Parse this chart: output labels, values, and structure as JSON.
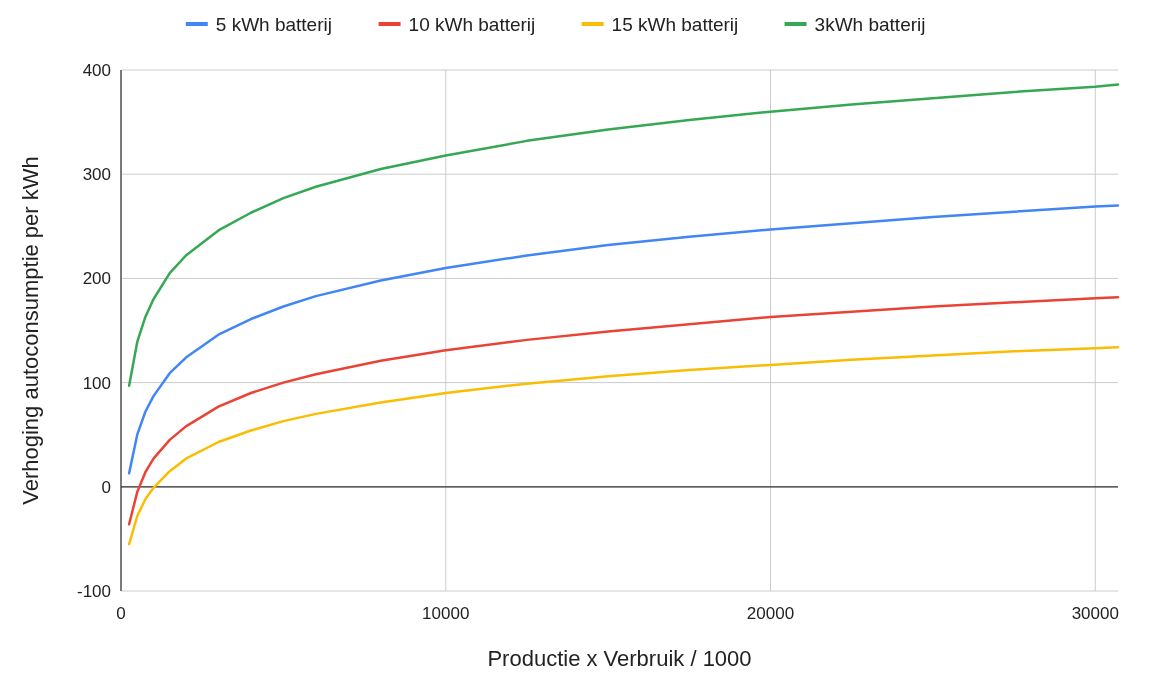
{
  "chart_data": {
    "type": "line",
    "xlabel": "Productie x Verbruik / 1000",
    "ylabel": "Verhoging autoconsumptie per kWh",
    "x": [
      250,
      500,
      750,
      1000,
      1500,
      2000,
      3000,
      4000,
      5000,
      6000,
      8000,
      10000,
      12500,
      15000,
      17500,
      20000,
      22500,
      25000,
      27500,
      30000,
      30700
    ],
    "series": [
      {
        "name": "5 kWh batterij",
        "color": "#4285f4",
        "values": [
          13,
          50,
          72,
          87,
          109,
          124,
          146,
          161,
          173,
          183,
          198,
          210,
          222,
          232,
          240,
          247,
          253,
          259,
          264,
          269,
          270
        ]
      },
      {
        "name": "10 kWh batterij",
        "color": "#ea4335",
        "values": [
          -36,
          -5,
          14,
          27,
          45,
          58,
          77,
          90,
          100,
          108,
          121,
          131,
          141,
          149,
          156,
          163,
          168,
          173,
          177,
          181,
          182
        ]
      },
      {
        "name": "15 kWh batterij",
        "color": "#fbbc04",
        "values": [
          -55,
          -28,
          -12,
          -1,
          15,
          27,
          43,
          54,
          63,
          70,
          81,
          90,
          99,
          106,
          112,
          117,
          122,
          126,
          130,
          133,
          134
        ]
      },
      {
        "name": "3kWh batterij",
        "color": "#34a853",
        "values": [
          97,
          139,
          163,
          180,
          205,
          222,
          246,
          263,
          277,
          288,
          305,
          318,
          332,
          343,
          352,
          360,
          367,
          373,
          379,
          384,
          386
        ]
      }
    ],
    "xlim": [
      0,
      30700
    ],
    "xticks": [
      0,
      10000,
      20000,
      30000
    ],
    "ylim": [
      -100,
      400
    ],
    "yticks": [
      -100,
      0,
      100,
      200,
      300,
      400
    ],
    "grid": true,
    "legend": "top",
    "marker": "none",
    "line_style": "solid"
  }
}
